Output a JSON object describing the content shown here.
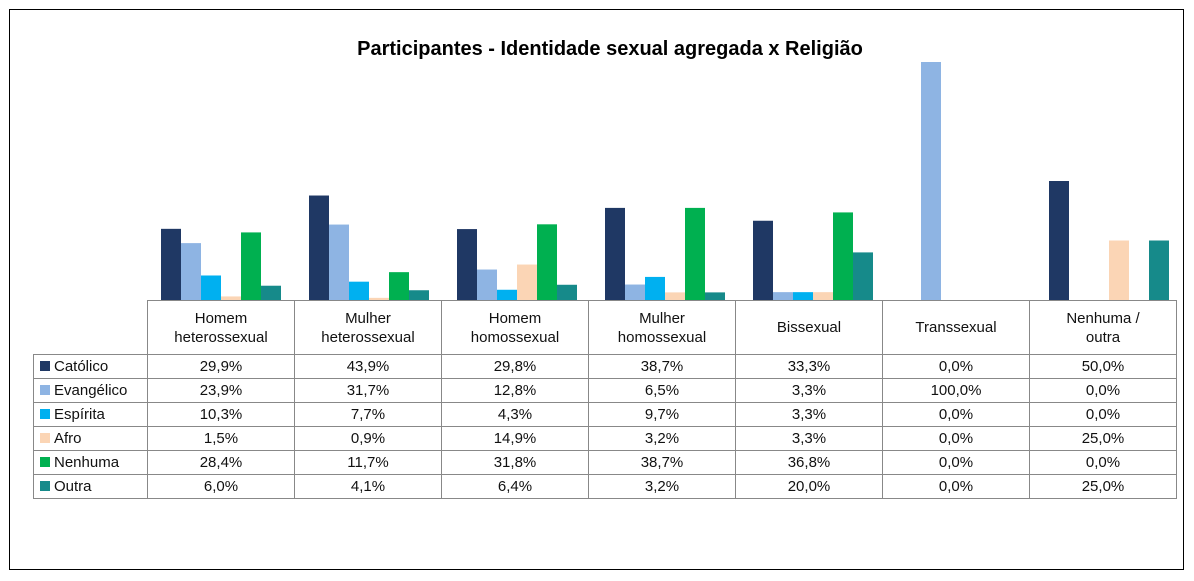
{
  "chart_data": {
    "type": "bar",
    "title": "Participantes  - Identidade sexual agregada  x  Religião",
    "categories": [
      "Homem heterossexual",
      "Mulher heterossexual",
      "Homem homossexual",
      "Mulher homossexual",
      "Bissexual",
      "Transsexual",
      "Nenhuma / outra"
    ],
    "ylim": [
      0,
      100
    ],
    "series": [
      {
        "name": "Católico",
        "color": "#1f3864",
        "values": [
          29.9,
          43.9,
          29.8,
          38.7,
          33.3,
          0,
          50
        ],
        "value_labels": [
          "29,9%",
          "43,9%",
          "29,8%",
          "38,7%",
          "33,3%",
          "0,0%",
          "50,0%"
        ]
      },
      {
        "name": "Evangélico",
        "color": "#8eb4e3",
        "values": [
          23.9,
          31.7,
          12.8,
          6.5,
          3.3,
          100,
          0
        ],
        "value_labels": [
          "23,9%",
          "31,7%",
          "12,8%",
          "6,5%",
          "3,3%",
          "100,0%",
          "0,0%"
        ]
      },
      {
        "name": "Espírita",
        "color": "#00b0f0",
        "values": [
          10.3,
          7.7,
          4.3,
          9.7,
          3.3,
          0,
          0
        ],
        "value_labels": [
          "10,3%",
          "7,7%",
          "4,3%",
          "9,7%",
          "3,3%",
          "0,0%",
          "0,0%"
        ]
      },
      {
        "name": "Afro",
        "color": "#fbd5b5",
        "values": [
          1.5,
          0.9,
          14.9,
          3.2,
          3.3,
          0,
          25
        ],
        "value_labels": [
          "1,5%",
          "0,9%",
          "14,9%",
          "3,2%",
          "3,3%",
          "0,0%",
          "25,0%"
        ]
      },
      {
        "name": "Nenhuma",
        "color": "#00b050",
        "values": [
          28.4,
          11.7,
          31.8,
          38.7,
          36.8,
          0,
          0
        ],
        "value_labels": [
          "28,4%",
          "11,7%",
          "31,8%",
          "38,7%",
          "36,8%",
          "0,0%",
          "0,0%"
        ]
      },
      {
        "name": "Outra",
        "color": "#168a8a",
        "values": [
          6.0,
          4.1,
          6.4,
          3.2,
          20.0,
          0,
          25
        ],
        "value_labels": [
          "6,0%",
          "4,1%",
          "6,4%",
          "3,2%",
          "20,0%",
          "0,0%",
          "25,0%"
        ]
      }
    ]
  }
}
